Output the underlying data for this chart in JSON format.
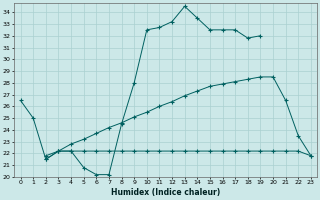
{
  "xlabel": "Humidex (Indice chaleur)",
  "bg_color": "#cce8e8",
  "grid_color": "#aad0d0",
  "line_color": "#006060",
  "xlim": [
    -0.5,
    23.5
  ],
  "ylim": [
    20,
    34.8
  ],
  "s1x": [
    0,
    1,
    2,
    3,
    4,
    5,
    6,
    7,
    8,
    9,
    10,
    11,
    12,
    13,
    14,
    15,
    16,
    17,
    18,
    19
  ],
  "s1y": [
    26.5,
    25.0,
    21.5,
    22.2,
    22.2,
    20.8,
    20.2,
    20.2,
    24.5,
    28.0,
    32.5,
    32.7,
    33.2,
    34.5,
    33.5,
    32.5,
    32.5,
    32.5,
    31.8,
    32.0
  ],
  "s2x": [
    2,
    3,
    4,
    5,
    6,
    7,
    8,
    9,
    10,
    11,
    12,
    13,
    14,
    15,
    16,
    17,
    18,
    19,
    20,
    21,
    22,
    23
  ],
  "s2y": [
    21.5,
    22.2,
    22.2,
    22.2,
    22.2,
    22.2,
    22.2,
    22.2,
    22.2,
    22.2,
    22.2,
    22.2,
    22.2,
    22.2,
    22.2,
    22.2,
    22.2,
    22.2,
    22.2,
    22.2,
    22.2,
    21.8
  ],
  "s3x": [
    2,
    3,
    4,
    5,
    6,
    7,
    8,
    9,
    10,
    11,
    12,
    13,
    14,
    15,
    16,
    17,
    18,
    19,
    20,
    21,
    22,
    23
  ],
  "s3y": [
    21.8,
    22.2,
    22.8,
    23.2,
    23.7,
    24.2,
    24.6,
    25.1,
    25.5,
    26.0,
    26.4,
    26.9,
    27.3,
    27.7,
    27.9,
    28.1,
    28.3,
    28.5,
    28.5,
    26.5,
    23.5,
    21.8
  ]
}
